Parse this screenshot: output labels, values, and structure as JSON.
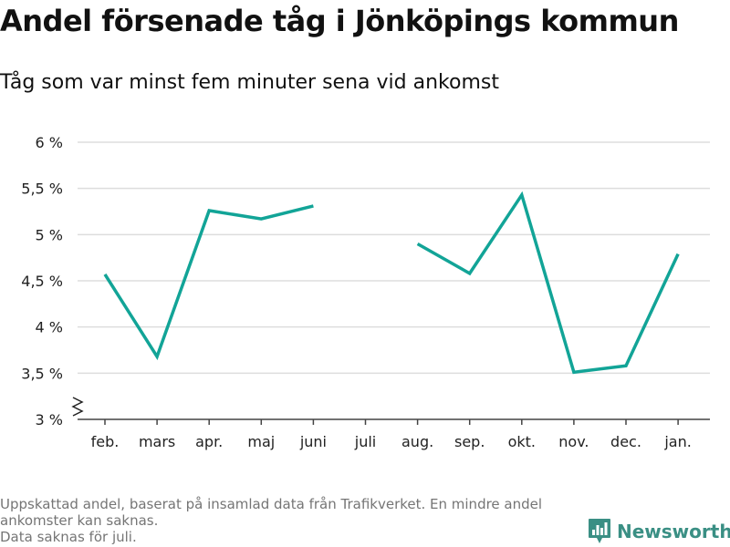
{
  "title": "Andel försenade tåg i Jönköpings kommun",
  "subtitle": "Tåg som var minst fem minuter sena vid ankomst",
  "footer": {
    "note1": "Uppskattad andel, baserat på insamlad data från Trafikverket. En mindre andel ankomster kan saknas.",
    "note2": "Data saknas för juli."
  },
  "brand": {
    "name": "Newsworthy",
    "icon": "bar-chart-logo-icon",
    "color": "#3a8f84"
  },
  "colors": {
    "line": "#12a497",
    "grid": "#dddddd",
    "axis": "#444444"
  },
  "chart_data": {
    "type": "line",
    "title": "Andel försenade tåg i Jönköpings kommun",
    "subtitle": "Tåg som var minst fem minuter sena vid ankomst",
    "categories": [
      "feb.",
      "mars",
      "apr.",
      "maj",
      "juni",
      "juli",
      "aug.",
      "sep.",
      "okt.",
      "nov.",
      "dec.",
      "jan."
    ],
    "series": [
      {
        "values": [
          4.57,
          3.68,
          5.26,
          5.17,
          5.31,
          null,
          4.9,
          4.58,
          5.43,
          3.51,
          3.58,
          4.79
        ]
      }
    ],
    "yticks": [
      "3 %",
      "3,5 %",
      "4 %",
      "4,5 %",
      "5 %",
      "5,5 %",
      "6 %"
    ],
    "ytick_values": [
      3,
      3.5,
      4,
      4.5,
      5,
      5.5,
      6
    ],
    "ylim": [
      3,
      6
    ],
    "y_axis_break": true,
    "grid": true,
    "unit": "%"
  }
}
